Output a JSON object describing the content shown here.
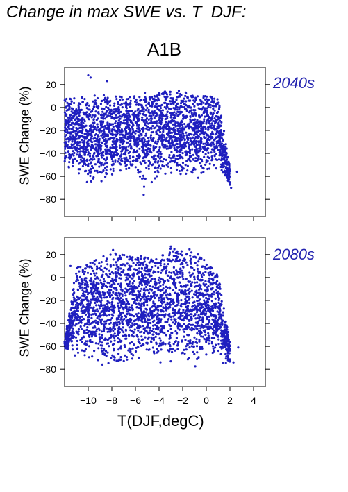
{
  "title": "Change in max SWE vs. T_DJF:",
  "scenario": "A1B",
  "xlabel": "T(DJF,degC)",
  "colors": {
    "points": "#1f1fbf",
    "period_label": "#2424b0"
  },
  "chart_data": [
    {
      "type": "scatter",
      "period": "2040s",
      "ylabel": "SWE Change (%)",
      "xlim": [
        -12,
        5
      ],
      "ylim": [
        -95,
        35
      ],
      "x_ticks": [
        -10,
        -8,
        -6,
        -4,
        -2,
        0,
        2,
        4
      ],
      "y_ticks": [
        -80,
        -60,
        -40,
        -20,
        0,
        20
      ],
      "grid": false,
      "density_profile": [
        {
          "x": -12,
          "ymin": -60,
          "ymax": 8
        },
        {
          "x": -11,
          "ymin": -60,
          "ymax": 9
        },
        {
          "x": -10,
          "ymin": -68,
          "ymax": 10
        },
        {
          "x": -9,
          "ymin": -70,
          "ymax": 12
        },
        {
          "x": -8,
          "ymin": -60,
          "ymax": 11
        },
        {
          "x": -7,
          "ymin": -62,
          "ymax": 11
        },
        {
          "x": -6,
          "ymin": -60,
          "ymax": 12
        },
        {
          "x": -5,
          "ymin": -75,
          "ymax": 14
        },
        {
          "x": -4,
          "ymin": -62,
          "ymax": 14
        },
        {
          "x": -3,
          "ymin": -60,
          "ymax": 16
        },
        {
          "x": -2,
          "ymin": -62,
          "ymax": 14
        },
        {
          "x": -1,
          "ymin": -65,
          "ymax": 13
        },
        {
          "x": 0,
          "ymin": -60,
          "ymax": 12
        },
        {
          "x": 1,
          "ymin": -55,
          "ymax": 10
        },
        {
          "x": 2,
          "ymin": -70,
          "ymax": -50
        }
      ],
      "outliers": [
        {
          "x": -10.0,
          "y": 28
        },
        {
          "x": -9.8,
          "y": 26
        },
        {
          "x": -8.4,
          "y": 23
        },
        {
          "x": -5.3,
          "y": -76
        },
        {
          "x": 2.1,
          "y": -70
        },
        {
          "x": 2.6,
          "y": -56
        }
      ]
    },
    {
      "type": "scatter",
      "period": "2080s",
      "ylabel": "SWE Change (%)",
      "xlim": [
        -12,
        5
      ],
      "ylim": [
        -95,
        35
      ],
      "x_ticks": [
        -10,
        -8,
        -6,
        -4,
        -2,
        0,
        2,
        4
      ],
      "y_ticks": [
        -80,
        -60,
        -40,
        -20,
        0,
        20
      ],
      "grid": false,
      "density_profile": [
        {
          "x": -12,
          "ymin": -62,
          "ymax": -55
        },
        {
          "x": -11,
          "ymin": -70,
          "ymax": 10
        },
        {
          "x": -10,
          "ymin": -75,
          "ymax": 14
        },
        {
          "x": -9,
          "ymin": -78,
          "ymax": 20
        },
        {
          "x": -8,
          "ymin": -80,
          "ymax": 22
        },
        {
          "x": -7,
          "ymin": -80,
          "ymax": 20
        },
        {
          "x": -6,
          "ymin": -78,
          "ymax": 22
        },
        {
          "x": -5,
          "ymin": -75,
          "ymax": 20
        },
        {
          "x": -4,
          "ymin": -80,
          "ymax": 18
        },
        {
          "x": -3,
          "ymin": -75,
          "ymax": 26
        },
        {
          "x": -2,
          "ymin": -80,
          "ymax": 26
        },
        {
          "x": -1,
          "ymin": -85,
          "ymax": 24
        },
        {
          "x": 0,
          "ymin": -70,
          "ymax": 15
        },
        {
          "x": 1,
          "ymin": -75,
          "ymax": 5
        },
        {
          "x": 2,
          "ymin": -75,
          "ymax": -55
        }
      ],
      "outliers": [
        {
          "x": -11.8,
          "y": -60
        },
        {
          "x": -11.5,
          "y": 10
        },
        {
          "x": -7.9,
          "y": 24
        },
        {
          "x": -3.0,
          "y": 27
        },
        {
          "x": 2.3,
          "y": -74
        },
        {
          "x": 2.7,
          "y": -61
        }
      ]
    }
  ]
}
